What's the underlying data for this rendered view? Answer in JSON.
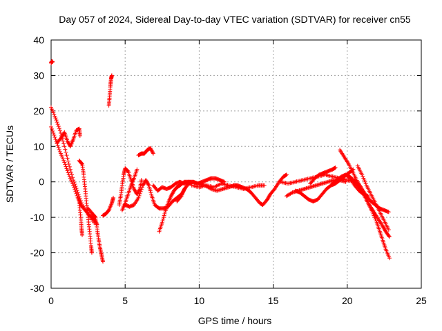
{
  "chart_data": {
    "type": "scatter",
    "title": "Day 057 of 2024, Sidereal Day-to-day VTEC variation (SDTVAR) for receiver cn55",
    "xlabel": "GPS time / hours",
    "ylabel": "SDTVAR / TECUs",
    "xlim": [
      0,
      25
    ],
    "ylim": [
      -30,
      40
    ],
    "xticks": [
      0,
      5,
      10,
      15,
      20,
      25
    ],
    "yticks": [
      -30,
      -20,
      -10,
      0,
      10,
      20,
      30,
      40
    ],
    "grid": true,
    "marker": "+",
    "color": "#ff0000",
    "series": [
      {
        "name": "trace-1",
        "points": [
          [
            0.0,
            33.5
          ],
          [
            0.05,
            34.0
          ],
          [
            0.1,
            33.8
          ]
        ]
      },
      {
        "name": "trace-2",
        "points": [
          [
            0.0,
            21.0
          ],
          [
            0.3,
            18.0
          ],
          [
            0.6,
            14.5
          ],
          [
            0.9,
            10.0
          ],
          [
            1.2,
            5.0
          ],
          [
            1.5,
            0.5
          ],
          [
            1.8,
            -3.0
          ],
          [
            2.1,
            -6.5
          ],
          [
            2.5,
            -9.0
          ],
          [
            2.9,
            -11.5
          ]
        ]
      },
      {
        "name": "trace-3",
        "points": [
          [
            0.0,
            15.5
          ],
          [
            0.3,
            12.0
          ],
          [
            0.6,
            8.5
          ],
          [
            0.9,
            5.5
          ],
          [
            1.2,
            2.0
          ],
          [
            1.5,
            -1.0
          ],
          [
            1.8,
            -4.5
          ],
          [
            2.0,
            -6.5
          ],
          [
            2.3,
            -8.0
          ],
          [
            2.6,
            -9.5
          ],
          [
            2.9,
            -10.5
          ],
          [
            3.1,
            -12.0
          ]
        ]
      },
      {
        "name": "trace-4",
        "points": [
          [
            0.4,
            11.0
          ],
          [
            0.7,
            12.5
          ],
          [
            0.9,
            14.0
          ],
          [
            1.1,
            11.5
          ],
          [
            1.3,
            10.0
          ],
          [
            1.5,
            12.0
          ],
          [
            1.7,
            14.5
          ],
          [
            1.9,
            15.0
          ],
          [
            1.95,
            13.0
          ]
        ]
      },
      {
        "name": "trace-5",
        "points": [
          [
            1.9,
            6.0
          ],
          [
            2.1,
            5.0
          ],
          [
            2.2,
            2.0
          ],
          [
            2.3,
            -2.0
          ],
          [
            2.4,
            -6.0
          ],
          [
            2.5,
            -10.0
          ],
          [
            2.6,
            -14.0
          ],
          [
            2.7,
            -18.0
          ],
          [
            2.75,
            -20.0
          ]
        ]
      },
      {
        "name": "trace-6",
        "points": [
          [
            1.9,
            -6.0
          ],
          [
            2.0,
            -10.0
          ],
          [
            2.05,
            -13.0
          ],
          [
            2.1,
            -15.0
          ]
        ]
      },
      {
        "name": "trace-7",
        "points": [
          [
            2.5,
            -7.5
          ],
          [
            2.8,
            -9.0
          ],
          [
            3.0,
            -10.0
          ],
          [
            3.1,
            -13.0
          ],
          [
            3.2,
            -16.0
          ],
          [
            3.3,
            -18.5
          ],
          [
            3.4,
            -20.5
          ],
          [
            3.5,
            -22.5
          ]
        ]
      },
      {
        "name": "trace-8",
        "points": [
          [
            3.9,
            21.5
          ],
          [
            3.95,
            24.0
          ],
          [
            4.0,
            27.0
          ],
          [
            4.05,
            29.0
          ],
          [
            4.1,
            30.0
          ]
        ]
      },
      {
        "name": "trace-9",
        "points": [
          [
            3.5,
            -9.5
          ],
          [
            3.7,
            -9.0
          ],
          [
            3.9,
            -8.0
          ],
          [
            4.1,
            -6.0
          ],
          [
            4.2,
            -4.5
          ]
        ]
      },
      {
        "name": "trace-10",
        "points": [
          [
            4.6,
            -6.5
          ],
          [
            4.7,
            -4.0
          ],
          [
            4.8,
            -1.0
          ],
          [
            4.9,
            2.0
          ],
          [
            5.0,
            3.8
          ],
          [
            5.2,
            3.0
          ],
          [
            5.4,
            0.5
          ],
          [
            5.6,
            -2.0
          ],
          [
            5.8,
            -3.5
          ],
          [
            6.0,
            -2.0
          ],
          [
            6.1,
            0.5
          ]
        ]
      },
      {
        "name": "trace-11",
        "points": [
          [
            4.8,
            -8.0
          ],
          [
            5.0,
            -6.0
          ],
          [
            5.2,
            -3.5
          ],
          [
            5.4,
            -1.0
          ],
          [
            5.6,
            1.0
          ],
          [
            5.8,
            3.5
          ]
        ]
      },
      {
        "name": "trace-12",
        "points": [
          [
            5.0,
            -6.5
          ],
          [
            5.3,
            -7.0
          ],
          [
            5.6,
            -6.5
          ],
          [
            5.9,
            -4.5
          ],
          [
            6.2,
            -1.0
          ],
          [
            6.4,
            0.5
          ],
          [
            6.6,
            -1.0
          ],
          [
            6.8,
            -4.0
          ],
          [
            7.0,
            -6.5
          ],
          [
            7.3,
            -7.5
          ],
          [
            7.6,
            -7.5
          ],
          [
            7.9,
            -7.0
          ],
          [
            8.2,
            -5.5
          ],
          [
            8.5,
            -4.5
          ],
          [
            8.8,
            -3.5
          ],
          [
            9.1,
            -1.5
          ]
        ]
      },
      {
        "name": "trace-13",
        "points": [
          [
            5.9,
            7.5
          ],
          [
            6.1,
            8.0
          ],
          [
            6.3,
            8.0
          ],
          [
            6.5,
            9.0
          ],
          [
            6.7,
            9.5
          ],
          [
            6.9,
            8.0
          ]
        ]
      },
      {
        "name": "trace-14",
        "points": [
          [
            6.9,
            -1.0
          ],
          [
            7.2,
            -2.5
          ],
          [
            7.5,
            -1.5
          ],
          [
            7.8,
            -2.0
          ],
          [
            8.1,
            -1.5
          ],
          [
            8.4,
            -0.5
          ],
          [
            8.7,
            0.0
          ],
          [
            9.0,
            -0.5
          ],
          [
            9.3,
            0.0
          ],
          [
            9.6,
            0.0
          ],
          [
            9.9,
            -0.5
          ],
          [
            10.2,
            -0.5
          ]
        ]
      },
      {
        "name": "trace-15",
        "points": [
          [
            7.3,
            -14.0
          ],
          [
            7.5,
            -11.5
          ],
          [
            7.7,
            -8.5
          ],
          [
            7.9,
            -6.0
          ],
          [
            8.1,
            -4.0
          ],
          [
            8.3,
            -2.5
          ],
          [
            8.5,
            -1.5
          ],
          [
            8.7,
            -1.0
          ],
          [
            9.0,
            0.0
          ],
          [
            9.3,
            0.0
          ]
        ]
      },
      {
        "name": "trace-16",
        "points": [
          [
            8.5,
            -5.5
          ],
          [
            8.8,
            -4.0
          ],
          [
            9.0,
            -2.0
          ],
          [
            9.3,
            -0.5
          ],
          [
            9.6,
            0.0
          ],
          [
            9.9,
            -0.5
          ],
          [
            10.2,
            0.0
          ],
          [
            10.5,
            0.5
          ],
          [
            10.8,
            1.0
          ],
          [
            11.1,
            1.0
          ],
          [
            11.4,
            0.5
          ],
          [
            11.7,
            0.0
          ]
        ]
      },
      {
        "name": "trace-17",
        "points": [
          [
            9.5,
            -1.0
          ],
          [
            10.0,
            -1.5
          ],
          [
            10.5,
            -1.0
          ],
          [
            11.0,
            -1.5
          ],
          [
            11.5,
            -0.5
          ],
          [
            12.0,
            -1.0
          ],
          [
            12.5,
            -1.5
          ],
          [
            13.0,
            -2.0
          ],
          [
            13.5,
            -1.5
          ],
          [
            14.0,
            -1.0
          ],
          [
            14.4,
            -1.0
          ]
        ]
      },
      {
        "name": "trace-18",
        "points": [
          [
            10.0,
            -0.5
          ],
          [
            10.4,
            -1.0
          ],
          [
            10.8,
            -2.0
          ],
          [
            11.2,
            -2.5
          ],
          [
            11.6,
            -2.0
          ],
          [
            12.0,
            -1.5
          ],
          [
            12.4,
            -1.0
          ],
          [
            12.8,
            -1.5
          ]
        ]
      },
      {
        "name": "trace-19",
        "points": [
          [
            12.3,
            -1.0
          ],
          [
            12.6,
            -1.0
          ],
          [
            12.9,
            -1.5
          ],
          [
            13.2,
            -2.0
          ],
          [
            13.5,
            -3.0
          ],
          [
            13.8,
            -4.5
          ],
          [
            14.1,
            -6.0
          ],
          [
            14.3,
            -6.5
          ],
          [
            14.6,
            -5.0
          ],
          [
            14.8,
            -3.5
          ],
          [
            15.1,
            -2.0
          ],
          [
            15.4,
            0.0
          ],
          [
            15.7,
            1.5
          ],
          [
            15.9,
            2.0
          ]
        ]
      },
      {
        "name": "trace-20",
        "points": [
          [
            15.5,
            0.0
          ],
          [
            16.0,
            -0.5
          ],
          [
            16.5,
            0.0
          ],
          [
            17.0,
            0.5
          ],
          [
            17.5,
            1.0
          ],
          [
            18.0,
            1.5
          ],
          [
            18.5,
            2.0
          ],
          [
            19.0,
            1.5
          ],
          [
            19.5,
            1.0
          ],
          [
            20.0,
            0.5
          ],
          [
            20.5,
            0.0
          ]
        ]
      },
      {
        "name": "trace-21",
        "points": [
          [
            15.9,
            -4.0
          ],
          [
            16.3,
            -3.0
          ],
          [
            16.7,
            -2.5
          ],
          [
            17.1,
            -2.0
          ],
          [
            17.5,
            -1.5
          ],
          [
            17.9,
            -1.0
          ],
          [
            18.3,
            -0.5
          ],
          [
            18.7,
            0.0
          ],
          [
            19.1,
            0.5
          ],
          [
            19.5,
            0.5
          ],
          [
            19.9,
            0.0
          ]
        ]
      },
      {
        "name": "trace-22",
        "points": [
          [
            16.5,
            -2.5
          ],
          [
            16.8,
            -3.0
          ],
          [
            17.1,
            -4.0
          ],
          [
            17.4,
            -5.0
          ],
          [
            17.7,
            -5.5
          ],
          [
            18.0,
            -5.0
          ],
          [
            18.3,
            -3.5
          ],
          [
            18.6,
            -2.0
          ],
          [
            18.9,
            -1.0
          ],
          [
            19.2,
            -0.5
          ],
          [
            19.5,
            0.5
          ],
          [
            19.8,
            1.5
          ],
          [
            20.1,
            2.5
          ],
          [
            20.4,
            3.5
          ]
        ]
      },
      {
        "name": "trace-23",
        "points": [
          [
            17.5,
            -0.5
          ],
          [
            17.8,
            1.0
          ],
          [
            18.1,
            2.0
          ],
          [
            18.4,
            2.5
          ],
          [
            18.7,
            3.0
          ],
          [
            19.0,
            3.5
          ],
          [
            19.2,
            4.0
          ]
        ]
      },
      {
        "name": "trace-24",
        "points": [
          [
            19.5,
            9.0
          ],
          [
            19.8,
            7.0
          ],
          [
            20.1,
            5.0
          ],
          [
            20.4,
            2.5
          ],
          [
            20.7,
            0.0
          ],
          [
            21.0,
            -2.0
          ],
          [
            21.3,
            -4.0
          ],
          [
            21.6,
            -5.5
          ],
          [
            21.9,
            -6.5
          ],
          [
            22.2,
            -7.5
          ],
          [
            22.5,
            -8.0
          ],
          [
            22.8,
            -8.5
          ]
        ]
      },
      {
        "name": "trace-25",
        "points": [
          [
            20.7,
            4.5
          ],
          [
            21.0,
            2.0
          ],
          [
            21.3,
            -1.0
          ],
          [
            21.6,
            -3.5
          ],
          [
            21.9,
            -6.0
          ],
          [
            22.2,
            -8.5
          ],
          [
            22.5,
            -11.0
          ],
          [
            22.8,
            -13.5
          ]
        ]
      },
      {
        "name": "trace-26",
        "points": [
          [
            20.0,
            2.0
          ],
          [
            20.3,
            1.0
          ],
          [
            20.6,
            -0.5
          ],
          [
            20.9,
            -2.0
          ],
          [
            21.2,
            -4.0
          ],
          [
            21.5,
            -6.5
          ],
          [
            21.8,
            -8.5
          ],
          [
            22.1,
            -10.5
          ],
          [
            22.4,
            -12.5
          ],
          [
            22.6,
            -14.0
          ],
          [
            22.85,
            -15.5
          ]
        ]
      },
      {
        "name": "trace-27",
        "points": [
          [
            20.5,
            0.5
          ],
          [
            20.8,
            -1.5
          ],
          [
            21.1,
            -3.5
          ],
          [
            21.4,
            -6.0
          ],
          [
            21.7,
            -8.5
          ],
          [
            22.0,
            -11.5
          ],
          [
            22.2,
            -14.0
          ],
          [
            22.4,
            -16.5
          ],
          [
            22.6,
            -19.0
          ],
          [
            22.85,
            -21.5
          ]
        ]
      },
      {
        "name": "trace-28",
        "points": [
          [
            19.0,
            -0.5
          ],
          [
            19.3,
            0.5
          ],
          [
            19.6,
            1.5
          ],
          [
            19.9,
            2.0
          ],
          [
            20.2,
            1.0
          ],
          [
            20.5,
            -1.0
          ],
          [
            20.8,
            -2.5
          ],
          [
            21.1,
            -3.5
          ],
          [
            21.4,
            -4.0
          ]
        ]
      }
    ]
  }
}
